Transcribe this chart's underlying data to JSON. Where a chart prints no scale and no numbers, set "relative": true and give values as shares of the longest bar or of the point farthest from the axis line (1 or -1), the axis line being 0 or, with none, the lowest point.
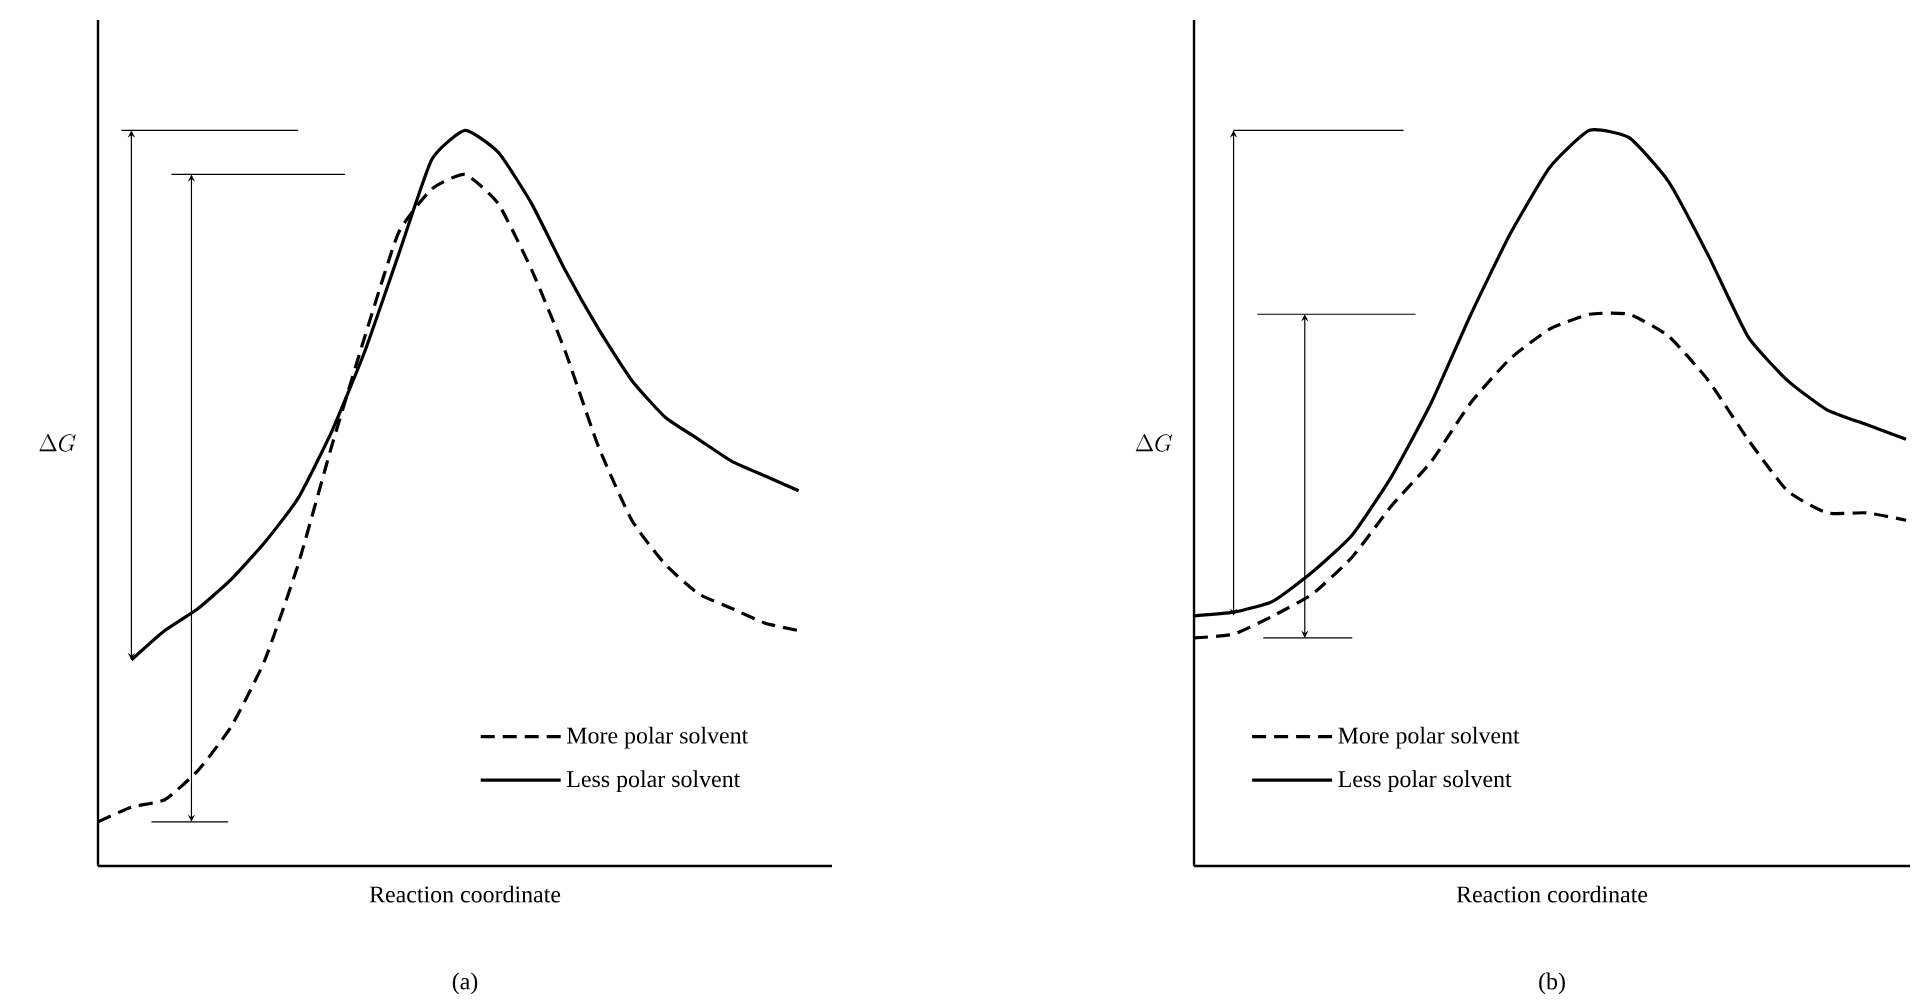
{
  "chart_data": [
    {
      "type": "line",
      "relative": true,
      "xlabel": "Reaction coordinate",
      "ylabel": "\\Delta G",
      "annotations": [
        "(a)"
      ],
      "legend": "bottom right",
      "categories": [
        null,
        null,
        null,
        null,
        null,
        null,
        null,
        null,
        null,
        null,
        null,
        null,
        null,
        null,
        null,
        null,
        null,
        null,
        null,
        null,
        null,
        null
      ],
      "series": [
        {
          "name": "More polar solvent",
          "color": "#000000",
          "line_style": "dashed",
          "values": [
            0.06,
            0.08,
            0.09,
            0.13,
            0.19,
            0.28,
            0.41,
            0.57,
            0.72,
            0.86,
            0.92,
            0.94,
            0.9,
            0.81,
            0.7,
            0.57,
            0.47,
            0.41,
            0.37,
            0.35,
            0.33,
            0.32
          ]
        },
        {
          "name": "Less polar solvent",
          "color": "#000000",
          "line_style": "solid",
          "values": [
            null,
            0.28,
            0.32,
            0.35,
            0.39,
            0.44,
            0.5,
            0.59,
            0.7,
            0.83,
            0.96,
            1.0,
            0.97,
            0.9,
            0.81,
            0.73,
            0.66,
            0.61,
            0.58,
            0.55,
            0.53,
            0.51
          ]
        }
      ]
    },
    {
      "type": "line",
      "relative": true,
      "xlabel": "Reaction coordinate",
      "ylabel": "\\Delta G",
      "annotations": [
        "(b)"
      ],
      "legend": "bottom left",
      "categories": [
        null,
        null,
        null,
        null,
        null,
        null,
        null,
        null,
        null,
        null,
        null,
        null,
        null,
        null,
        null,
        null,
        null,
        null,
        null
      ],
      "series": [
        {
          "name": "More polar solvent",
          "color": "#000000",
          "line_style": "dashed",
          "values": [
            0.31,
            0.315,
            0.34,
            0.37,
            0.42,
            0.49,
            0.55,
            0.63,
            0.69,
            0.73,
            0.75,
            0.75,
            0.72,
            0.66,
            0.58,
            0.51,
            0.48,
            0.48,
            0.47
          ]
        },
        {
          "name": "Less polar solvent",
          "color": "#000000",
          "line_style": "solid",
          "values": [
            0.34,
            0.345,
            0.36,
            0.4,
            0.45,
            0.53,
            0.63,
            0.75,
            0.86,
            0.95,
            1.0,
            0.99,
            0.93,
            0.83,
            0.72,
            0.66,
            0.62,
            0.6,
            0.58
          ]
        }
      ]
    }
  ]
}
